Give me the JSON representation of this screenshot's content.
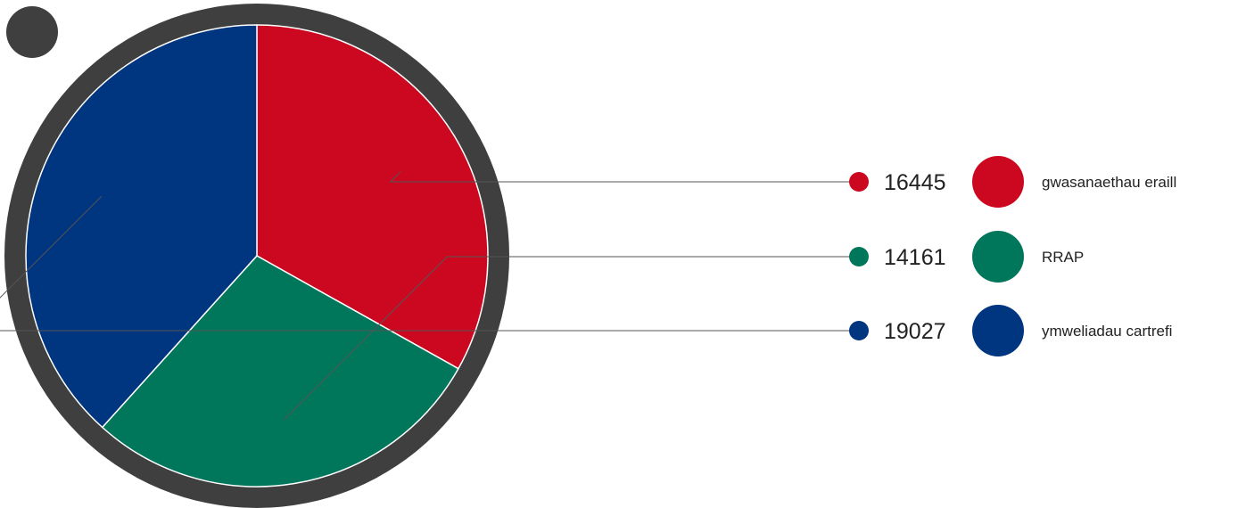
{
  "chart_data": {
    "type": "pie",
    "title": "",
    "slices": [
      {
        "label": "gwasanaethau eraill",
        "value": 16445,
        "color": "#cc0820"
      },
      {
        "label": "RRAP",
        "value": 14161,
        "color": "#00765b"
      },
      {
        "label": "ymweliadau cartrefi",
        "value": 19027,
        "color": "#003580"
      }
    ],
    "legend": "right",
    "frame_color": "#3f3f3f"
  }
}
